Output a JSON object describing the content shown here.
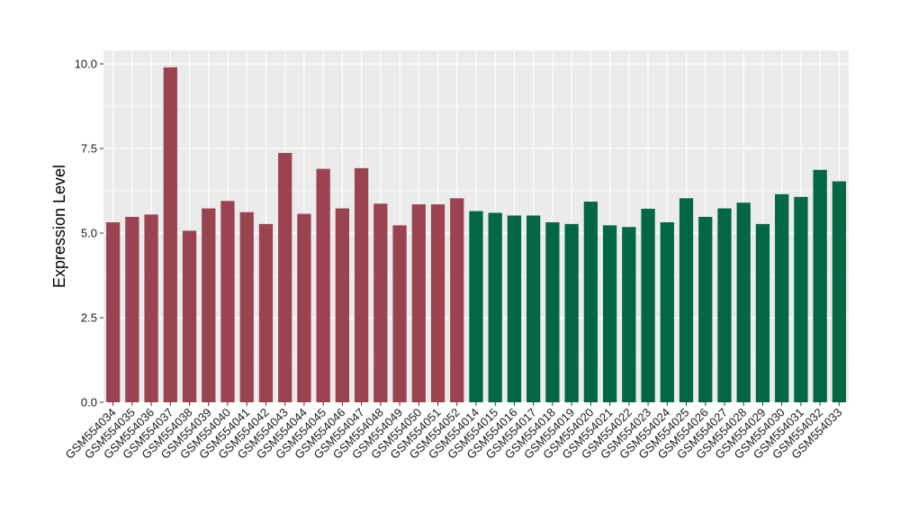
{
  "chart_data": {
    "type": "bar",
    "title": "",
    "xlabel": "",
    "ylabel": "Expression Level",
    "ylim": [
      0,
      10.4
    ],
    "yticks": [
      0.0,
      2.5,
      5.0,
      7.5,
      10.0
    ],
    "ytick_labels": [
      "0.0",
      "2.5",
      "5.0",
      "7.5",
      "10.0"
    ],
    "grid": true,
    "legend": "none",
    "panel_color": "#EBEBEB",
    "grid_color": "#FFFFFF",
    "categories": [
      "GSM554034",
      "GSM554035",
      "GSM554036",
      "GSM554037",
      "GSM554038",
      "GSM554039",
      "GSM554040",
      "GSM554041",
      "GSM554042",
      "GSM554043",
      "GSM554044",
      "GSM554045",
      "GSM554046",
      "GSM554047",
      "GSM554048",
      "GSM554049",
      "GSM554050",
      "GSM554051",
      "GSM554052",
      "GSM554014",
      "GSM554015",
      "GSM554016",
      "GSM554017",
      "GSM554018",
      "GSM554019",
      "GSM554020",
      "GSM554021",
      "GSM554022",
      "GSM554023",
      "GSM554024",
      "GSM554025",
      "GSM554026",
      "GSM554027",
      "GSM554028",
      "GSM554029",
      "GSM554030",
      "GSM554031",
      "GSM554032",
      "GSM554033"
    ],
    "values": [
      5.32,
      5.48,
      5.55,
      9.9,
      5.07,
      5.73,
      5.95,
      5.62,
      5.27,
      7.37,
      5.57,
      6.9,
      5.73,
      6.92,
      5.87,
      5.23,
      5.85,
      5.85,
      6.03,
      5.65,
      5.6,
      5.52,
      5.52,
      5.32,
      5.27,
      5.93,
      5.23,
      5.18,
      5.72,
      5.32,
      6.03,
      5.48,
      5.73,
      5.9,
      5.27,
      6.15,
      6.07,
      6.87,
      6.53
    ],
    "colors": [
      "#9B4450",
      "#9B4450",
      "#9B4450",
      "#9B4450",
      "#9B4450",
      "#9B4450",
      "#9B4450",
      "#9B4450",
      "#9B4450",
      "#9B4450",
      "#9B4450",
      "#9B4450",
      "#9B4450",
      "#9B4450",
      "#9B4450",
      "#9B4450",
      "#9B4450",
      "#9B4450",
      "#9B4450",
      "#036645",
      "#036645",
      "#036645",
      "#036645",
      "#036645",
      "#036645",
      "#036645",
      "#036645",
      "#036645",
      "#036645",
      "#036645",
      "#036645",
      "#036645",
      "#036645",
      "#036645",
      "#036645",
      "#036645",
      "#036645",
      "#036645",
      "#036645"
    ]
  }
}
